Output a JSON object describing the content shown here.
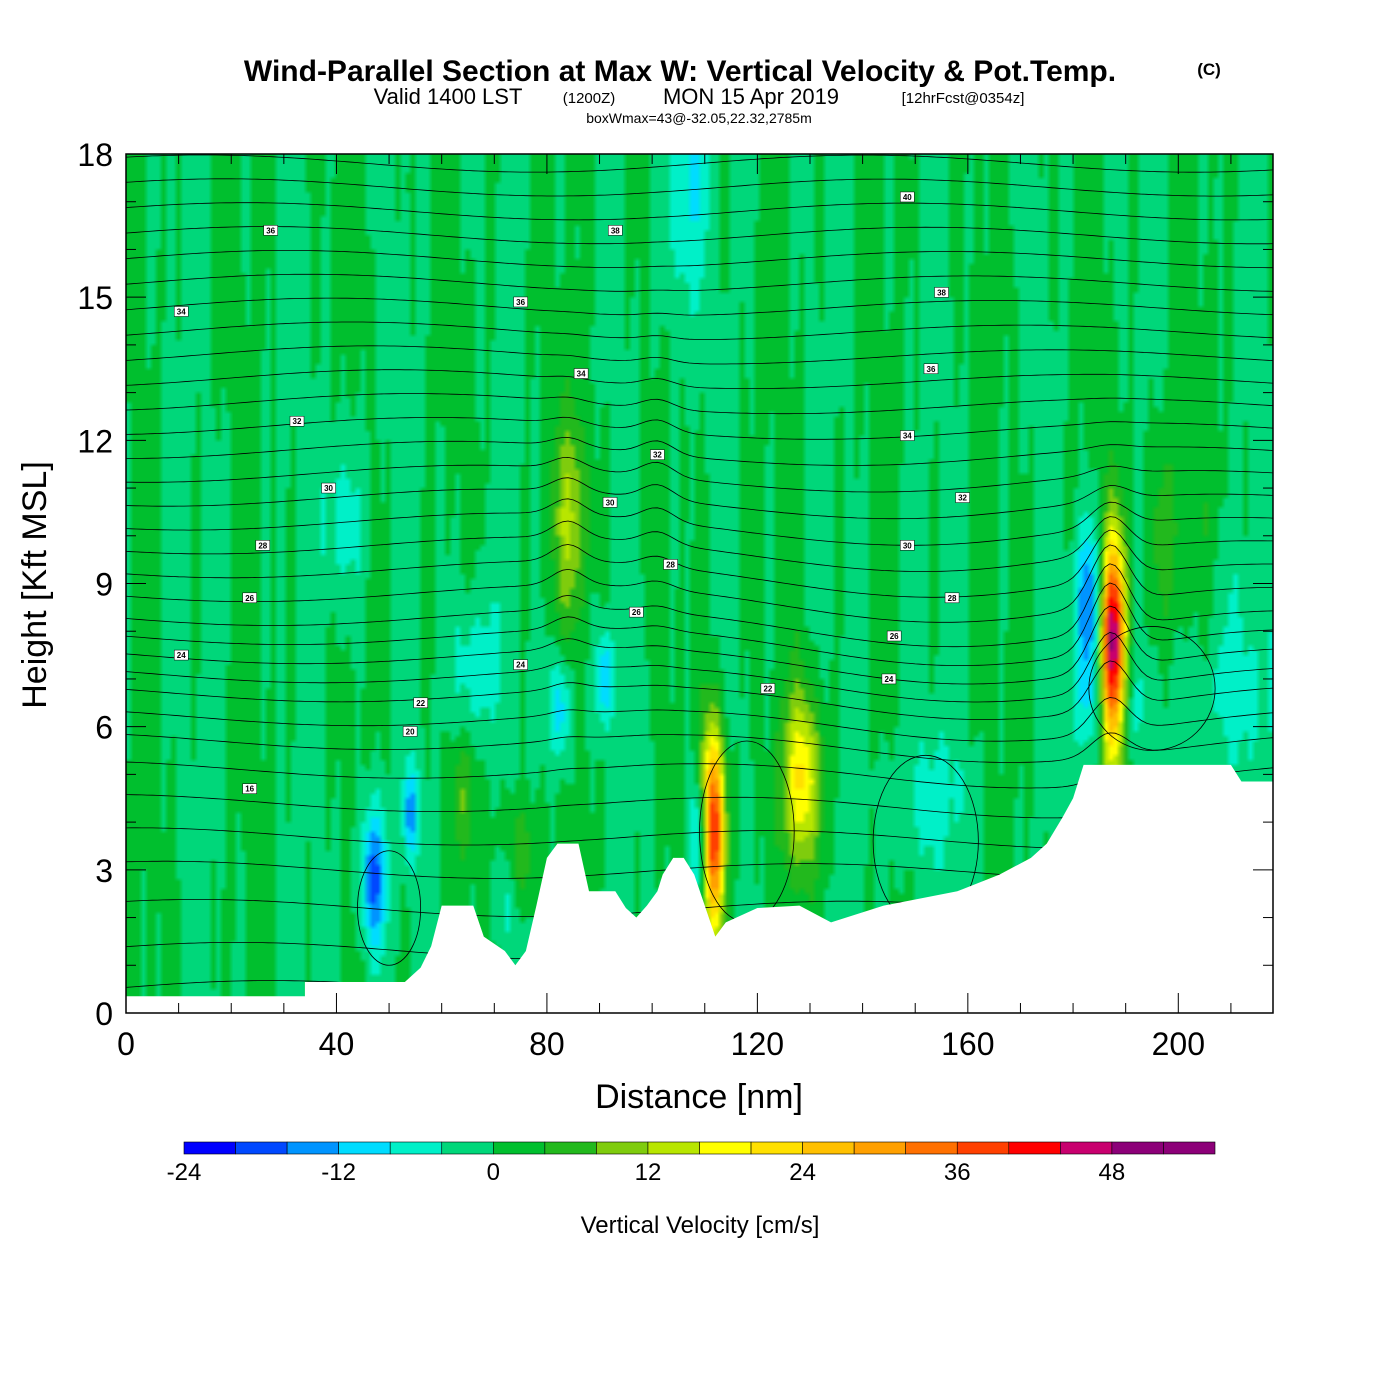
{
  "chart_data": {
    "type": "heatmap",
    "title": "Wind-Parallel Section at Max W: Vertical Velocity & Pot.Temp.",
    "title_mark": "(C)",
    "subtitle_valid": "Valid 1400 LST",
    "subtitle_utc": "(1200Z)",
    "subtitle_date": "MON 15 Apr 2019",
    "subtitle_fcst": "[12hrFcst@0354z]",
    "subtitle_box": "boxWmax=43@-32.05,22.32,2785m",
    "xlabel": "Distance [nm]",
    "ylabel": "Height [Kft MSL]",
    "xlim": [
      0,
      218
    ],
    "ylim": [
      0,
      18
    ],
    "xticks": [
      0,
      40,
      80,
      120,
      160,
      200
    ],
    "yticks": [
      0,
      3,
      6,
      9,
      12,
      15,
      18
    ],
    "colorbar": {
      "title": "Vertical Velocity [cm/s]",
      "levels": [
        -24,
        -20,
        -16,
        -12,
        -8,
        -4,
        0,
        4,
        8,
        12,
        16,
        20,
        24,
        28,
        32,
        36,
        40,
        44,
        48,
        52,
        56
      ],
      "tick_labels": [
        -24,
        -12,
        0,
        12,
        24,
        36,
        48
      ],
      "colors": [
        "#0000ff",
        "#0048ff",
        "#0094ff",
        "#00dcff",
        "#00f0c8",
        "#00d77a",
        "#00bf2e",
        "#22b91d",
        "#7fcc0d",
        "#b8e600",
        "#ffff00",
        "#ffe000",
        "#ffc000",
        "#ffa000",
        "#ff7000",
        "#ff4000",
        "#ff0000",
        "#c8006e",
        "#8c0078",
        "#8c0078"
      ]
    },
    "terrain": [
      [
        0,
        0.35
      ],
      [
        34,
        0.35
      ],
      [
        34,
        0.65
      ],
      [
        53,
        0.65
      ],
      [
        56,
        0.95
      ],
      [
        58,
        1.4
      ],
      [
        60,
        2.25
      ],
      [
        66,
        2.25
      ],
      [
        68,
        1.6
      ],
      [
        72,
        1.3
      ],
      [
        74,
        1.0
      ],
      [
        76,
        1.3
      ],
      [
        78,
        2.25
      ],
      [
        80,
        3.25
      ],
      [
        82,
        3.55
      ],
      [
        86,
        3.55
      ],
      [
        88,
        2.55
      ],
      [
        93,
        2.55
      ],
      [
        95,
        2.2
      ],
      [
        97,
        2.0
      ],
      [
        99,
        2.25
      ],
      [
        101,
        2.55
      ],
      [
        102,
        2.9
      ],
      [
        104,
        3.25
      ],
      [
        106,
        3.25
      ],
      [
        108,
        2.9
      ],
      [
        110,
        2.25
      ],
      [
        112,
        1.6
      ],
      [
        114,
        1.9
      ],
      [
        120,
        2.2
      ],
      [
        128,
        2.25
      ],
      [
        134,
        1.9
      ],
      [
        144,
        2.25
      ],
      [
        158,
        2.55
      ],
      [
        166,
        2.9
      ],
      [
        172,
        3.25
      ],
      [
        175,
        3.55
      ],
      [
        178,
        4.1
      ],
      [
        180,
        4.5
      ],
      [
        182,
        5.2
      ],
      [
        210,
        5.2
      ],
      [
        212,
        4.85
      ],
      [
        218,
        4.85
      ]
    ],
    "updrafts": [
      {
        "x": 111.5,
        "y": 3.8,
        "sx": 1.6,
        "sy": 1.5,
        "w": 43
      },
      {
        "x": 128.5,
        "y": 4.9,
        "sx": 2.6,
        "sy": 1.3,
        "w": 20
      },
      {
        "x": 187.5,
        "y": 7.6,
        "sx": 1.7,
        "sy": 1.6,
        "w": 51
      },
      {
        "x": 84.5,
        "y": 10.4,
        "sx": 2.6,
        "sy": 1.6,
        "w": 11
      },
      {
        "x": 74.0,
        "y": 3.3,
        "sx": 2.6,
        "sy": 0.8,
        "w": 10
      },
      {
        "x": 64.0,
        "y": 4.6,
        "sx": 1.8,
        "sy": 0.9,
        "w": 7
      },
      {
        "x": 198.0,
        "y": 10.0,
        "sx": 4.0,
        "sy": 1.5,
        "w": 6
      }
    ],
    "downdrafts": [
      {
        "x": 47.0,
        "y": 2.8,
        "sx": 1.8,
        "sy": 1.1,
        "w": -18
      },
      {
        "x": 54.0,
        "y": 4.2,
        "sx": 1.0,
        "sy": 0.7,
        "w": -14
      },
      {
        "x": 109.0,
        "y": 3.6,
        "sx": 1.4,
        "sy": 1.0,
        "w": -17
      },
      {
        "x": 91.0,
        "y": 7.0,
        "sx": 1.2,
        "sy": 0.7,
        "w": -13
      },
      {
        "x": 82.5,
        "y": 6.4,
        "sx": 1.5,
        "sy": 0.8,
        "w": -12
      },
      {
        "x": 183.0,
        "y": 8.6,
        "sx": 2.0,
        "sy": 1.2,
        "w": -16
      },
      {
        "x": 106.0,
        "y": 17.5,
        "sx": 3.0,
        "sy": 2.2,
        "w": -9
      },
      {
        "x": 66.0,
        "y": 7.2,
        "sx": 3.0,
        "sy": 1.2,
        "w": -8
      },
      {
        "x": 41.0,
        "y": 10.3,
        "sx": 3.0,
        "sy": 1.4,
        "w": -7
      },
      {
        "x": 72.0,
        "y": 2.8,
        "sx": 1.5,
        "sy": 0.9,
        "w": -9
      },
      {
        "x": 186.0,
        "y": 6.5,
        "sx": 5.0,
        "sy": 0.9,
        "w": -8
      },
      {
        "x": 210.0,
        "y": 6.8,
        "sx": 5.0,
        "sy": 1.6,
        "w": -6
      },
      {
        "x": 152.0,
        "y": 4.5,
        "sx": 6.0,
        "sy": 1.2,
        "w": -5
      }
    ],
    "isentropes": {
      "base_levels": [
        0.5,
        1.3,
        2.2,
        3.0,
        3.7,
        4.4,
        5.1,
        5.7,
        6.2,
        6.7,
        7.1,
        7.5,
        7.9,
        8.3,
        8.8,
        9.3,
        9.8,
        10.3,
        10.8,
        11.3,
        11.8,
        12.3,
        12.8,
        13.3,
        13.8,
        14.3,
        14.8,
        15.3,
        15.8,
        16.3,
        16.8,
        17.3,
        17.8,
        18.3
      ],
      "labels": [
        {
          "text": "16",
          "x": 23.5,
          "y": 4.7
        },
        {
          "text": "20",
          "x": 54.0,
          "y": 5.9
        },
        {
          "text": "22",
          "x": 56.0,
          "y": 6.5
        },
        {
          "text": "22",
          "x": 122.0,
          "y": 6.8
        },
        {
          "text": "24",
          "x": 10.5,
          "y": 7.5
        },
        {
          "text": "24",
          "x": 75.0,
          "y": 7.3
        },
        {
          "text": "24",
          "x": 145.0,
          "y": 7.0
        },
        {
          "text": "26",
          "x": 23.5,
          "y": 8.7
        },
        {
          "text": "26",
          "x": 97.0,
          "y": 8.4
        },
        {
          "text": "26",
          "x": 146.0,
          "y": 7.9
        },
        {
          "text": "28",
          "x": 26.0,
          "y": 9.8
        },
        {
          "text": "28",
          "x": 103.5,
          "y": 9.4
        },
        {
          "text": "28",
          "x": 157.0,
          "y": 8.7
        },
        {
          "text": "30",
          "x": 38.5,
          "y": 11.0
        },
        {
          "text": "30",
          "x": 92.0,
          "y": 10.7
        },
        {
          "text": "30",
          "x": 148.5,
          "y": 9.8
        },
        {
          "text": "32",
          "x": 32.5,
          "y": 12.4
        },
        {
          "text": "32",
          "x": 101.0,
          "y": 11.7
        },
        {
          "text": "32",
          "x": 159.0,
          "y": 10.8
        },
        {
          "text": "34",
          "x": 10.5,
          "y": 14.7
        },
        {
          "text": "34",
          "x": 86.5,
          "y": 13.4
        },
        {
          "text": "34",
          "x": 148.5,
          "y": 12.1
        },
        {
          "text": "36",
          "x": 75.0,
          "y": 14.9
        },
        {
          "text": "36",
          "x": 153.0,
          "y": 13.5
        },
        {
          "text": "36",
          "x": 27.5,
          "y": 16.4
        },
        {
          "text": "38",
          "x": 93.0,
          "y": 16.4
        },
        {
          "text": "38",
          "x": 155.0,
          "y": 15.1
        },
        {
          "text": "40",
          "x": 148.5,
          "y": 17.1
        }
      ]
    }
  }
}
